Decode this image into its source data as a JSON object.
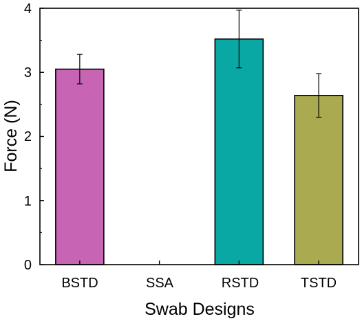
{
  "chart_data": {
    "type": "bar",
    "title": "",
    "xlabel": "Swab Designs",
    "ylabel": "Force (N)",
    "ylim": [
      0,
      4
    ],
    "yticks": [
      0,
      1,
      2,
      3,
      4
    ],
    "grid": false,
    "categories": [
      "BSTD",
      "SSA",
      "RSTD",
      "TSTD"
    ],
    "values": [
      3.05,
      null,
      3.52,
      2.64
    ],
    "errors": [
      0.23,
      null,
      0.45,
      0.34
    ],
    "colors": [
      "#c864b4",
      null,
      "#0aa8a4",
      "#aaaa50"
    ]
  }
}
